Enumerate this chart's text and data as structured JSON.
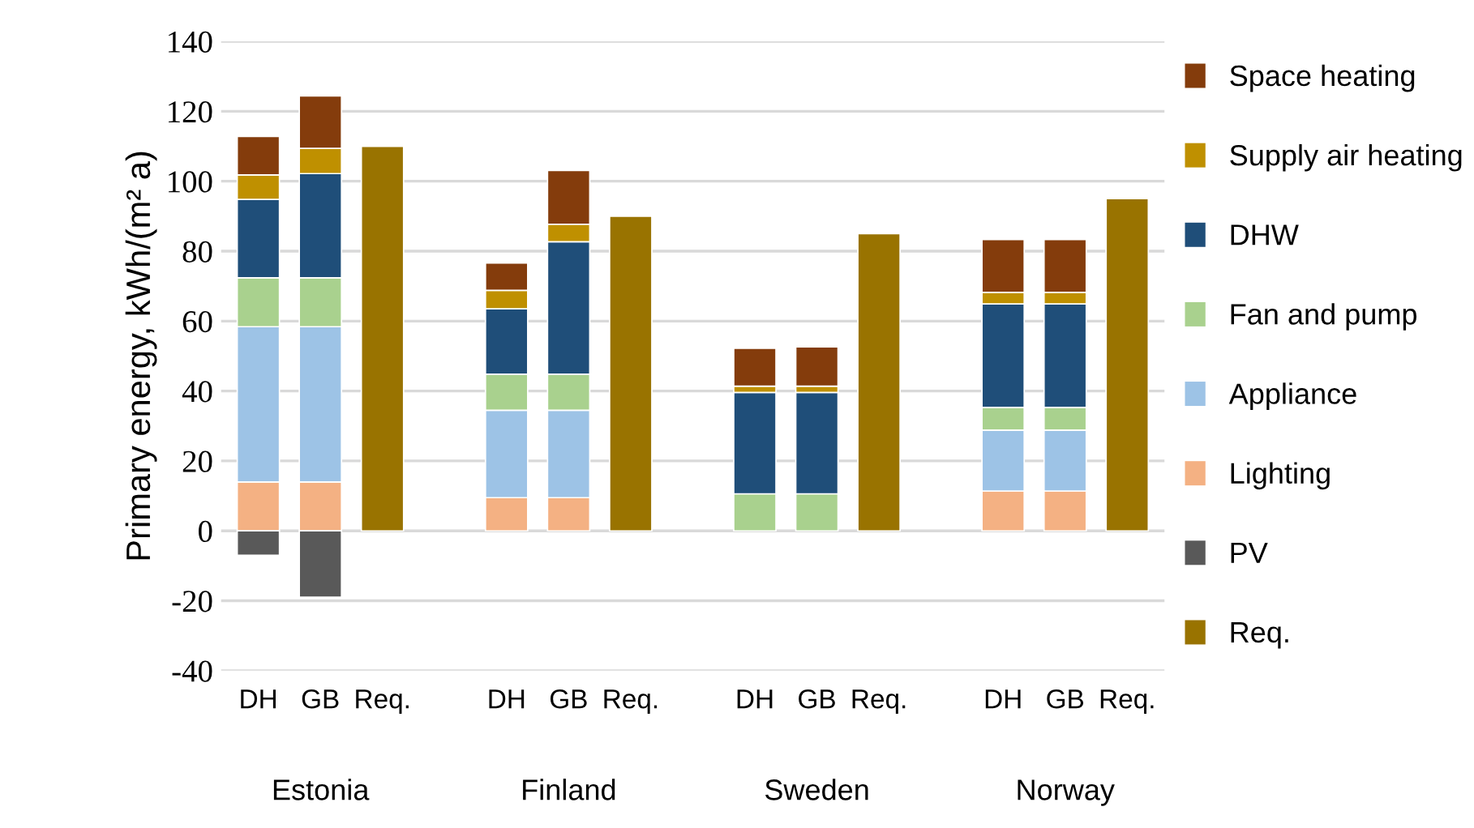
{
  "chart_data": {
    "type": "bar",
    "stacked": true,
    "ylabel": "Primary energy, kWh/(m² a)",
    "categories": [
      "DH",
      "GB",
      "Req.",
      null,
      "DH",
      "GB",
      "Req.",
      null,
      "DH",
      "GB",
      "Req.",
      null,
      "DH",
      "GB",
      "Req."
    ],
    "annotations": [
      "Estonia",
      "Finland",
      "Sweden",
      "Norway"
    ],
    "series": [
      {
        "name": "Lighting",
        "color": "#f4b183",
        "values": [
          14,
          14,
          null,
          null,
          9.5,
          9.5,
          null,
          null,
          null,
          null,
          null,
          null,
          11.4,
          11.4,
          null
        ]
      },
      {
        "name": "Appliance",
        "color": "#9dc3e6",
        "values": [
          44.4,
          44.4,
          null,
          null,
          25,
          25,
          null,
          null,
          null,
          null,
          null,
          null,
          17.4,
          17.4,
          null
        ]
      },
      {
        "name": "Fan and pump",
        "color": "#a9d18e",
        "values": [
          14,
          14,
          null,
          null,
          10.3,
          10.3,
          null,
          null,
          10.6,
          10.6,
          null,
          null,
          6.5,
          6.5,
          null
        ]
      },
      {
        "name": "DHW",
        "color": "#1f4e79",
        "values": [
          22.4,
          29.8,
          null,
          null,
          18.7,
          37.9,
          null,
          null,
          29,
          29,
          null,
          null,
          29.6,
          29.6,
          null
        ]
      },
      {
        "name": "Supply air heating",
        "color": "#bf9000",
        "values": [
          7,
          7.2,
          null,
          null,
          5.3,
          5,
          null,
          null,
          1.8,
          1.8,
          null,
          null,
          3.3,
          3.3,
          null
        ]
      },
      {
        "name": "Space heating",
        "color": "#843c0c",
        "values": [
          11,
          15,
          null,
          null,
          7.8,
          15.4,
          null,
          null,
          10.8,
          11.2,
          null,
          null,
          15.1,
          15.1,
          null
        ]
      },
      {
        "name": "PV",
        "color": "#595959",
        "values": [
          -7,
          -19,
          null,
          null,
          null,
          null,
          null,
          null,
          null,
          null,
          null,
          null,
          null,
          null,
          null
        ]
      },
      {
        "name": "Req.",
        "color": "#997300",
        "values": [
          null,
          null,
          110,
          null,
          null,
          null,
          90,
          null,
          null,
          null,
          85,
          null,
          null,
          null,
          95
        ]
      }
    ],
    "ylim": [
      -40,
      140
    ],
    "yticks": [
      -40,
      -20,
      0,
      20,
      40,
      60,
      80,
      100,
      120,
      140
    ],
    "grid": "y",
    "legend": "right"
  }
}
